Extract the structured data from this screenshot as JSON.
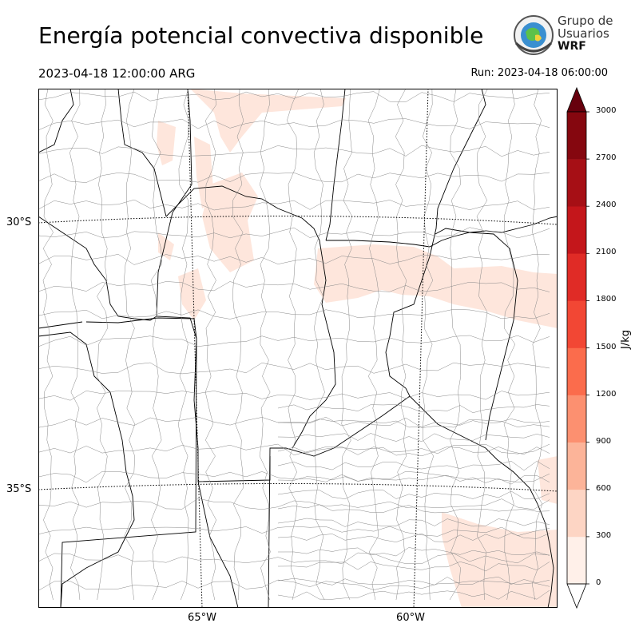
{
  "title": "Energía potencial convectiva disponible",
  "valid_time": "2023-04-18 12:00:00 ARG",
  "run_time": "Run: 2023-04-18 06:00:00",
  "logo": {
    "line1": "Grupo de",
    "line2": "Usuarios",
    "line3": "WRF",
    "icon": "globe-seal-icon"
  },
  "map": {
    "lat_labels": [
      "30°S",
      "35°S"
    ],
    "lon_labels": [
      "65°W",
      "60°W"
    ],
    "border_color": "#000000",
    "gridline_color": "#000000",
    "cape_fill_color": "#fee6dc"
  },
  "colorbar": {
    "unit": "J/kg",
    "ticks": [
      "0",
      "300",
      "600",
      "900",
      "1200",
      "1500",
      "1800",
      "2100",
      "2400",
      "2700",
      "3000"
    ],
    "colors": [
      "#fff0e9",
      "#fdd5c4",
      "#fcb499",
      "#fc9070",
      "#fb6c4c",
      "#f24734",
      "#e02b26",
      "#c4161b",
      "#a60f15",
      "#85070f"
    ],
    "over_color": "#67000d",
    "under_color": "#ffffff"
  }
}
